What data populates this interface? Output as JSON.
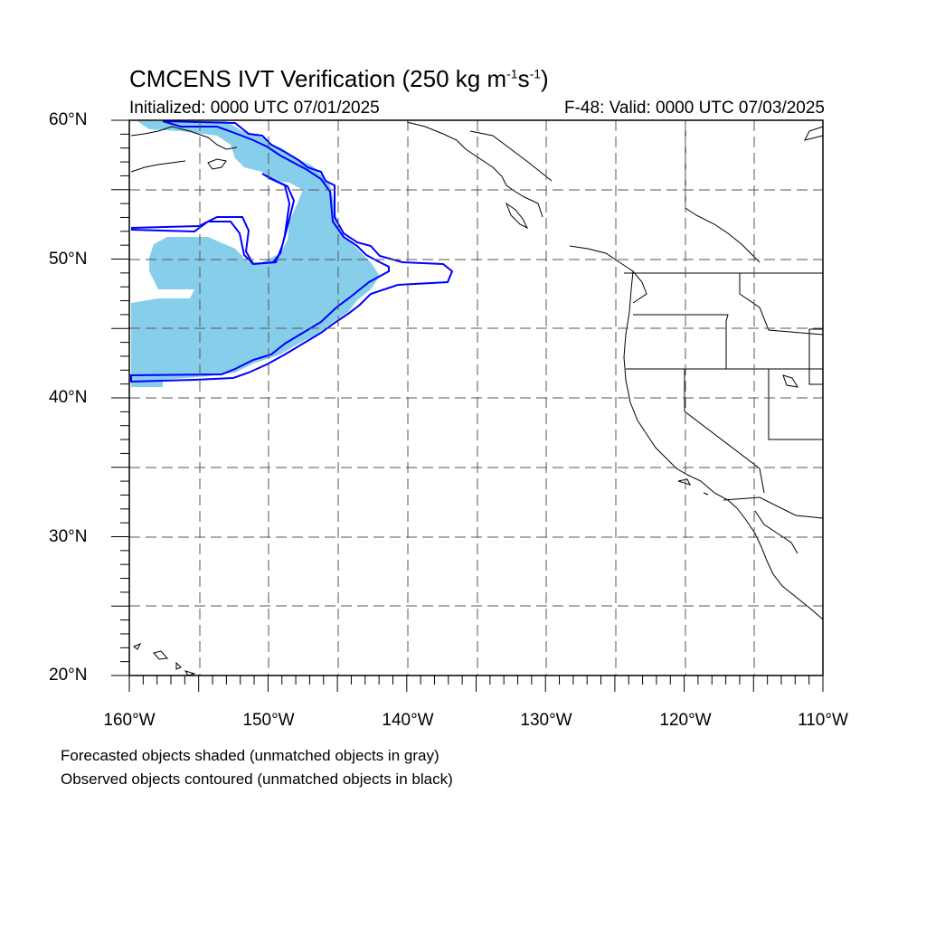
{
  "header": {
    "title_main": "CMCENS IVT Verification (250 kg m",
    "title_exp1": "-1",
    "title_mid": "s",
    "title_exp2": "-1",
    "title_end": ")",
    "initialized": "Initialized: 0000 UTC 07/01/2025",
    "valid": "F-48: Valid: 0000 UTC 07/03/2025"
  },
  "axes": {
    "lat_labels": [
      "60°N",
      "50°N",
      "40°N",
      "30°N",
      "20°N"
    ],
    "lon_labels": [
      "160°W",
      "150°W",
      "140°W",
      "130°W",
      "120°W",
      "110°W"
    ],
    "lat_range": [
      20,
      60
    ],
    "lon_range": [
      -160,
      -110
    ],
    "grid": "dashed every 5 degrees"
  },
  "legend": {
    "line1": "Forecasted objects shaded (unmatched objects in gray)",
    "line2": "Observed objects contoured (unmatched objects in black)"
  },
  "colors": {
    "forecast_fill": "#87ceeb",
    "observed_contour": "#0000ff",
    "coastline": "#000000",
    "grid": "#555555"
  }
}
